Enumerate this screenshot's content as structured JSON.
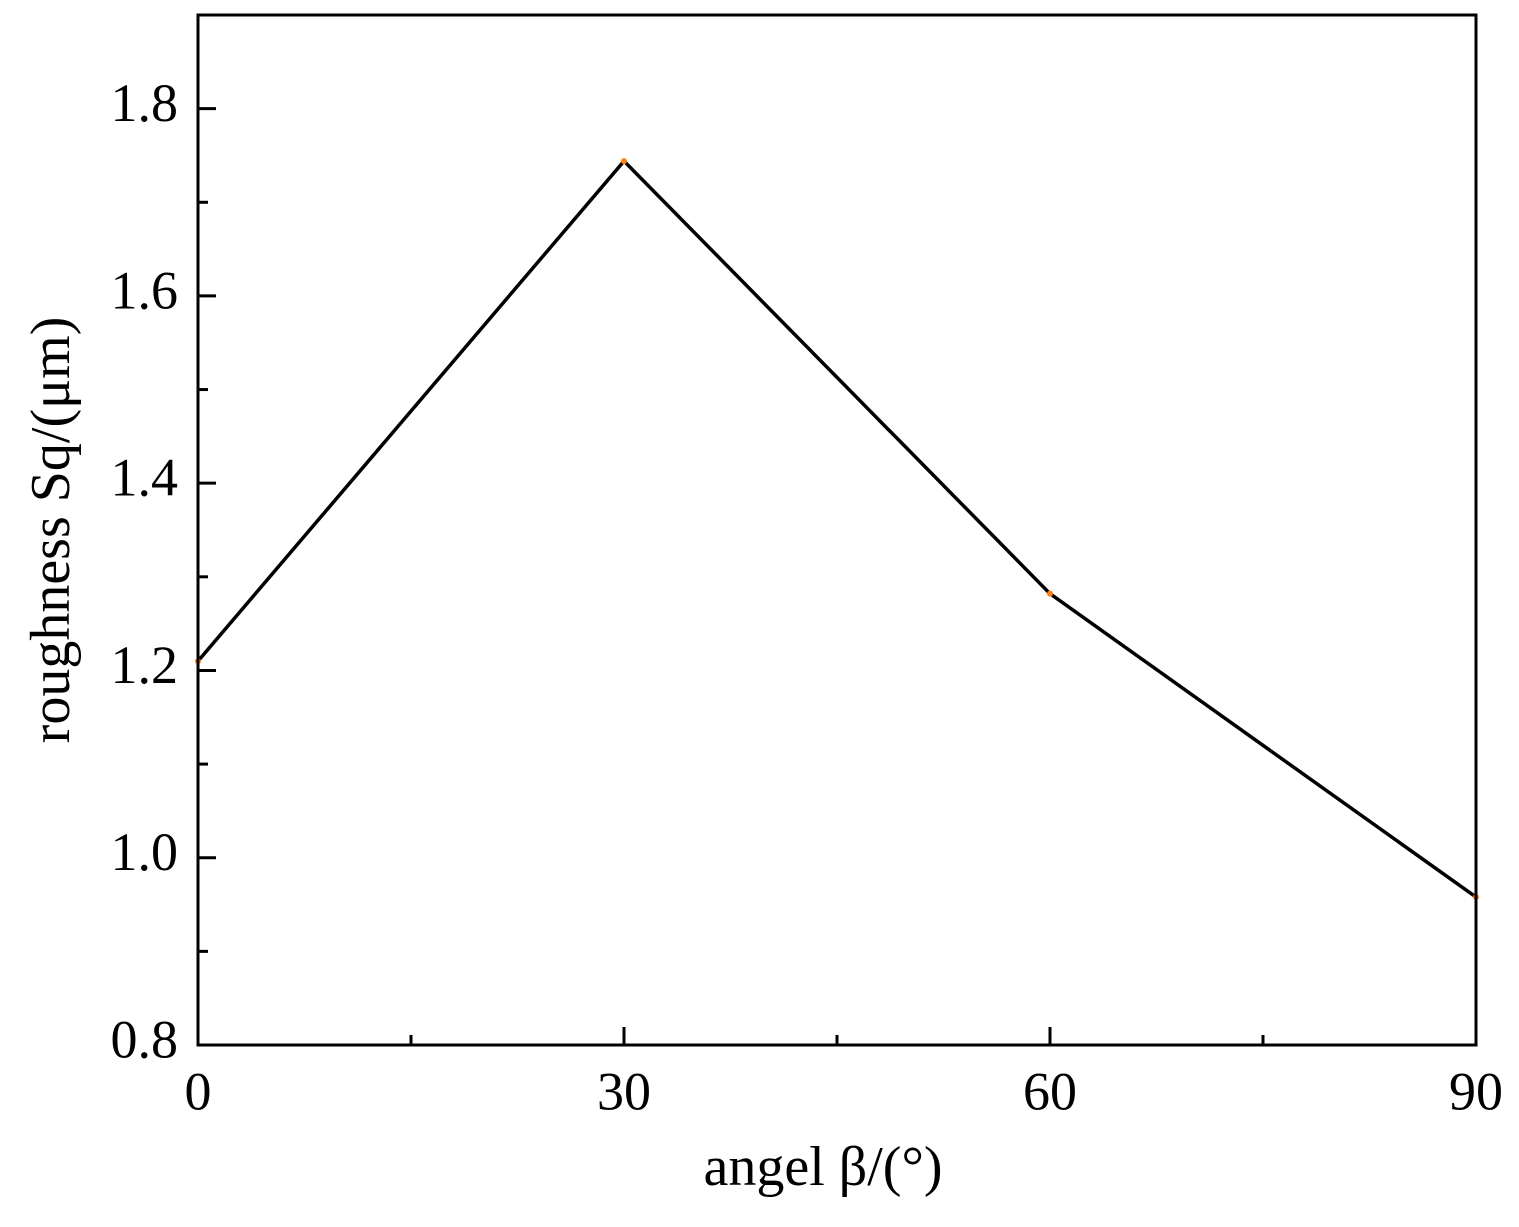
{
  "chart_data": {
    "type": "line",
    "xlabel": "angel β/(°)",
    "ylabel": "roughness Sq/(μm)",
    "x": [
      0,
      30,
      60,
      90
    ],
    "series": [
      {
        "color": "#000000",
        "marker_color": "#ff7f0e",
        "values": [
          1.21,
          1.744,
          1.282,
          0.958
        ]
      }
    ],
    "xlim": [
      0,
      90
    ],
    "xticks": [
      0,
      30,
      60,
      90
    ],
    "xminorticks": [
      15,
      45,
      75
    ],
    "ylim": [
      0.8,
      1.9
    ],
    "yticks": [
      {
        "value": 0.8,
        "label": "0.8"
      },
      {
        "value": 1.0,
        "label": "1.0"
      },
      {
        "value": 1.2,
        "label": "1.2"
      },
      {
        "value": 1.4,
        "label": "1.4"
      },
      {
        "value": 1.6,
        "label": "1.6"
      },
      {
        "value": 1.8,
        "label": "1.8"
      }
    ],
    "yminorticks": [
      0.9,
      1.1,
      1.3,
      1.5,
      1.7
    ],
    "grid": false
  }
}
